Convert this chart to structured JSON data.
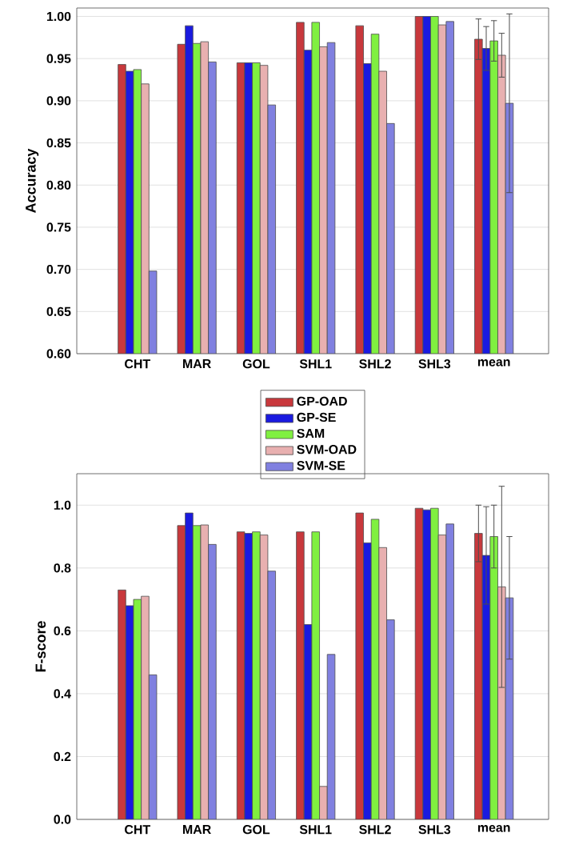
{
  "chart_data": [
    {
      "type": "bar",
      "ylabel": "Accuracy",
      "categories": [
        "CHT",
        "MAR",
        "GOL",
        "SHL1",
        "SHL2",
        "SHL3",
        "mean"
      ],
      "ylim": [
        0.6,
        1.01
      ],
      "yticks": [
        {
          "value": 0.6,
          "label": "0.60"
        },
        {
          "value": 0.65,
          "label": "0.65"
        },
        {
          "value": 0.7,
          "label": "0.70"
        },
        {
          "value": 0.75,
          "label": "0.75"
        },
        {
          "value": 0.8,
          "label": "0.80"
        },
        {
          "value": 0.85,
          "label": "0.85"
        },
        {
          "value": 0.9,
          "label": "0.90"
        },
        {
          "value": 0.95,
          "label": "0.95"
        },
        {
          "value": 1.0,
          "label": "1.00"
        }
      ],
      "grid": "y",
      "legend": "bottom",
      "series": [
        {
          "name": "GP-OAD",
          "color": "#c8383c",
          "values": [
            0.943,
            0.967,
            0.945,
            0.993,
            0.989,
            1.0,
            0.973
          ],
          "errors": [
            null,
            null,
            null,
            null,
            null,
            null,
            0.024
          ]
        },
        {
          "name": "GP-SE",
          "color": "#1a1ae0",
          "values": [
            0.935,
            0.989,
            0.945,
            0.96,
            0.944,
            1.0,
            0.962
          ],
          "errors": [
            null,
            null,
            null,
            null,
            null,
            null,
            0.026
          ]
        },
        {
          "name": "SAM",
          "color": "#80f040",
          "values": [
            0.937,
            0.968,
            0.945,
            0.993,
            0.979,
            1.0,
            0.971
          ],
          "errors": [
            null,
            null,
            null,
            null,
            null,
            null,
            0.024
          ]
        },
        {
          "name": "SVM-OAD",
          "color": "#e8b0b0",
          "values": [
            0.92,
            0.97,
            0.942,
            0.964,
            0.935,
            0.99,
            0.954
          ],
          "errors": [
            null,
            null,
            null,
            null,
            null,
            null,
            0.026
          ]
        },
        {
          "name": "SVM-SE",
          "color": "#8080e0",
          "values": [
            0.698,
            0.946,
            0.895,
            0.969,
            0.873,
            0.994,
            0.897
          ],
          "errors": [
            null,
            null,
            null,
            null,
            null,
            null,
            0.106
          ]
        }
      ]
    },
    {
      "type": "bar",
      "ylabel": "F-score",
      "categories": [
        "CHT",
        "MAR",
        "GOL",
        "SHL1",
        "SHL2",
        "SHL3",
        "mean"
      ],
      "ylim": [
        0,
        1.1
      ],
      "yticks": [
        {
          "value": 0,
          "label": "0.0"
        },
        {
          "value": 0.2,
          "label": "0.2"
        },
        {
          "value": 0.4,
          "label": "0.4"
        },
        {
          "value": 0.6,
          "label": "0.6"
        },
        {
          "value": 0.8,
          "label": "0.8"
        },
        {
          "value": 1.0,
          "label": "1.0"
        }
      ],
      "grid": "y",
      "series": [
        {
          "color": "#c8383c",
          "values": [
            0.73,
            0.935,
            0.915,
            0.915,
            0.975,
            0.99,
            0.91
          ],
          "errors": [
            null,
            null,
            null,
            null,
            null,
            null,
            0.09
          ]
        },
        {
          "color": "#1a1ae0",
          "values": [
            0.68,
            0.975,
            0.91,
            0.62,
            0.88,
            0.985,
            0.84
          ],
          "errors": [
            null,
            null,
            null,
            null,
            null,
            null,
            0.155
          ]
        },
        {
          "color": "#80f040",
          "values": [
            0.7,
            0.935,
            0.915,
            0.915,
            0.955,
            0.99,
            0.9
          ],
          "errors": [
            null,
            null,
            null,
            null,
            null,
            null,
            0.1
          ]
        },
        {
          "color": "#e8b0b0",
          "values": [
            0.71,
            0.937,
            0.905,
            0.105,
            0.865,
            0.905,
            0.74
          ],
          "errors": [
            null,
            null,
            null,
            null,
            null,
            null,
            0.32
          ]
        },
        {
          "color": "#8080e0",
          "values": [
            0.46,
            0.875,
            0.79,
            0.525,
            0.635,
            0.94,
            0.705
          ],
          "errors": [
            null,
            null,
            null,
            null,
            null,
            null,
            0.195
          ]
        }
      ]
    }
  ]
}
